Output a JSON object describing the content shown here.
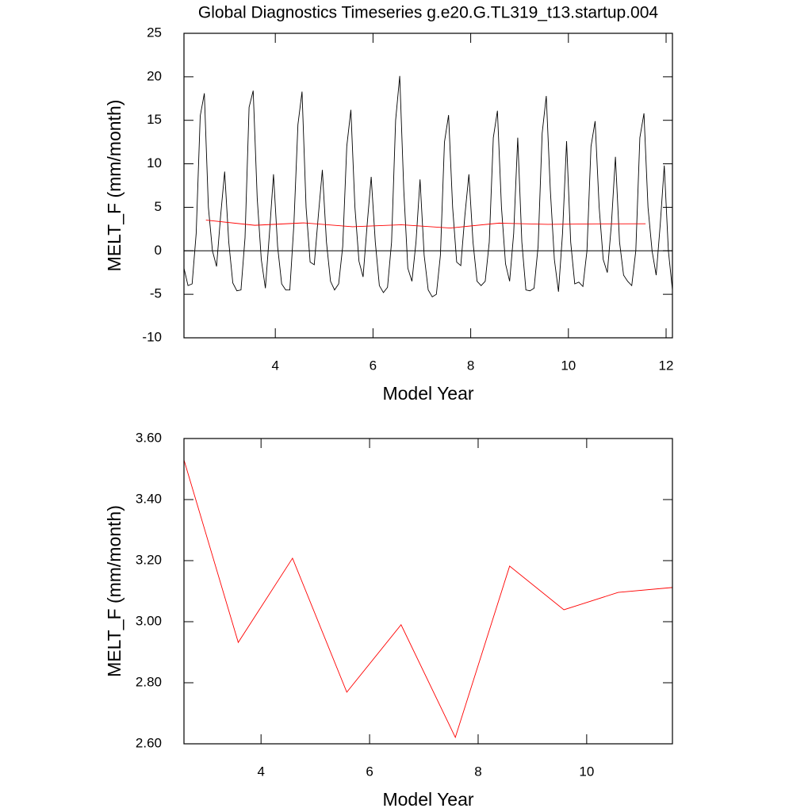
{
  "chart_data": [
    {
      "type": "line",
      "title": "Global Diagnostics Timeseries g.e20.G.TL319_t13.startup.004",
      "x_label": "Model Year",
      "y_label": "MELT_F (mm/month)",
      "xlim": [
        2.13,
        12.13
      ],
      "xticks": [
        4,
        6,
        8,
        10,
        12
      ],
      "ylim": [
        -10,
        25
      ],
      "yticks": [
        -10,
        -5,
        0,
        5,
        10,
        15,
        20,
        25
      ],
      "reference_line": 0,
      "series": [
        {
          "color": "#000000",
          "x": [
            2.13,
            2.213,
            2.297,
            2.38,
            2.463,
            2.547,
            2.63,
            2.713,
            2.797,
            2.88,
            2.963,
            3.047,
            3.13,
            3.213,
            3.297,
            3.38,
            3.463,
            3.547,
            3.63,
            3.713,
            3.797,
            3.88,
            3.963,
            4.047,
            4.13,
            4.213,
            4.297,
            4.38,
            4.463,
            4.547,
            4.63,
            4.713,
            4.797,
            4.88,
            4.963,
            5.047,
            5.13,
            5.213,
            5.297,
            5.38,
            5.463,
            5.547,
            5.63,
            5.713,
            5.797,
            5.88,
            5.963,
            6.047,
            6.13,
            6.213,
            6.297,
            6.38,
            6.463,
            6.547,
            6.63,
            6.713,
            6.797,
            6.88,
            6.963,
            7.047,
            7.13,
            7.213,
            7.297,
            7.38,
            7.463,
            7.547,
            7.63,
            7.713,
            7.797,
            7.88,
            7.963,
            8.047,
            8.13,
            8.213,
            8.297,
            8.38,
            8.463,
            8.547,
            8.63,
            8.713,
            8.797,
            8.88,
            8.963,
            9.047,
            9.13,
            9.213,
            9.297,
            9.38,
            9.463,
            9.547,
            9.63,
            9.713,
            9.797,
            9.88,
            9.963,
            10.047,
            10.13,
            10.213,
            10.297,
            10.38,
            10.463,
            10.547,
            10.63,
            10.713,
            10.797,
            10.88,
            10.963,
            11.047,
            11.13,
            11.213,
            11.297,
            11.38,
            11.463,
            11.547,
            11.63,
            11.713,
            11.797,
            11.88,
            11.963,
            12.047,
            12.13
          ],
          "values": [
            -2,
            -4,
            -3.8,
            2,
            15.5,
            18.1,
            5,
            0,
            -1.8,
            4,
            9.1,
            1,
            -3.7,
            -4.6,
            -4.5,
            1.5,
            16.5,
            18.4,
            6,
            -1,
            -4.3,
            2,
            8.8,
            0.5,
            -3.8,
            -4.5,
            -4.5,
            3,
            14.5,
            18.3,
            5,
            -1.3,
            -1.6,
            4,
            9.3,
            1,
            -3.5,
            -4.5,
            -3.8,
            0.5,
            12,
            16.2,
            5,
            -1.2,
            -3,
            3,
            8.5,
            1,
            -4,
            -4.8,
            -4.2,
            1,
            15,
            20.1,
            7,
            -2,
            -3.5,
            1,
            8.2,
            -0.5,
            -4.5,
            -5.3,
            -5,
            -0.5,
            12.5,
            15.6,
            5,
            -1.3,
            -1.7,
            4,
            8.8,
            1,
            -3.5,
            -4,
            -3.5,
            1,
            13,
            16.1,
            5,
            -1.5,
            -3.5,
            2,
            13,
            1,
            -4.5,
            -4.6,
            -4.3,
            0.5,
            13.5,
            17.8,
            7,
            -1,
            -4.7,
            2,
            12.6,
            1,
            -3.8,
            -3.6,
            -4.1,
            0,
            12,
            14.9,
            5,
            -1,
            -2.5,
            3,
            10.8,
            1,
            -2.8,
            -3.5,
            -4,
            0,
            13,
            15.8,
            5,
            0,
            -2.8,
            3,
            9.8,
            0,
            -4.5
          ]
        },
        {
          "color": "#ff0000",
          "x": [
            2.58,
            3.58,
            4.58,
            5.58,
            6.58,
            7.58,
            8.58,
            9.58,
            10.58,
            11.58
          ],
          "values": [
            3.53,
            2.932,
            3.208,
            2.769,
            2.99,
            2.621,
            3.182,
            3.039,
            3.096,
            3.112
          ]
        }
      ]
    },
    {
      "type": "line",
      "x_label": "Model Year",
      "y_label": "MELT_F (mm/month)",
      "xlim": [
        2.58,
        11.58
      ],
      "xticks": [
        4,
        6,
        8,
        10
      ],
      "ylim": [
        2.6,
        3.6
      ],
      "yticks": [
        {
          "value": 2.6,
          "label": "2.60"
        },
        {
          "value": 2.8,
          "label": "2.80"
        },
        {
          "value": 3.0,
          "label": "3.00"
        },
        {
          "value": 3.2,
          "label": "3.20"
        },
        {
          "value": 3.4,
          "label": "3.40"
        },
        {
          "value": 3.6,
          "label": "3.60"
        }
      ],
      "series": [
        {
          "color": "#ff0000",
          "x": [
            2.58,
            3.58,
            4.58,
            5.58,
            6.58,
            7.58,
            8.58,
            9.58,
            10.58,
            11.58
          ],
          "values": [
            3.53,
            2.932,
            3.208,
            2.769,
            2.99,
            2.621,
            3.182,
            3.039,
            3.096,
            3.112
          ]
        }
      ]
    }
  ]
}
